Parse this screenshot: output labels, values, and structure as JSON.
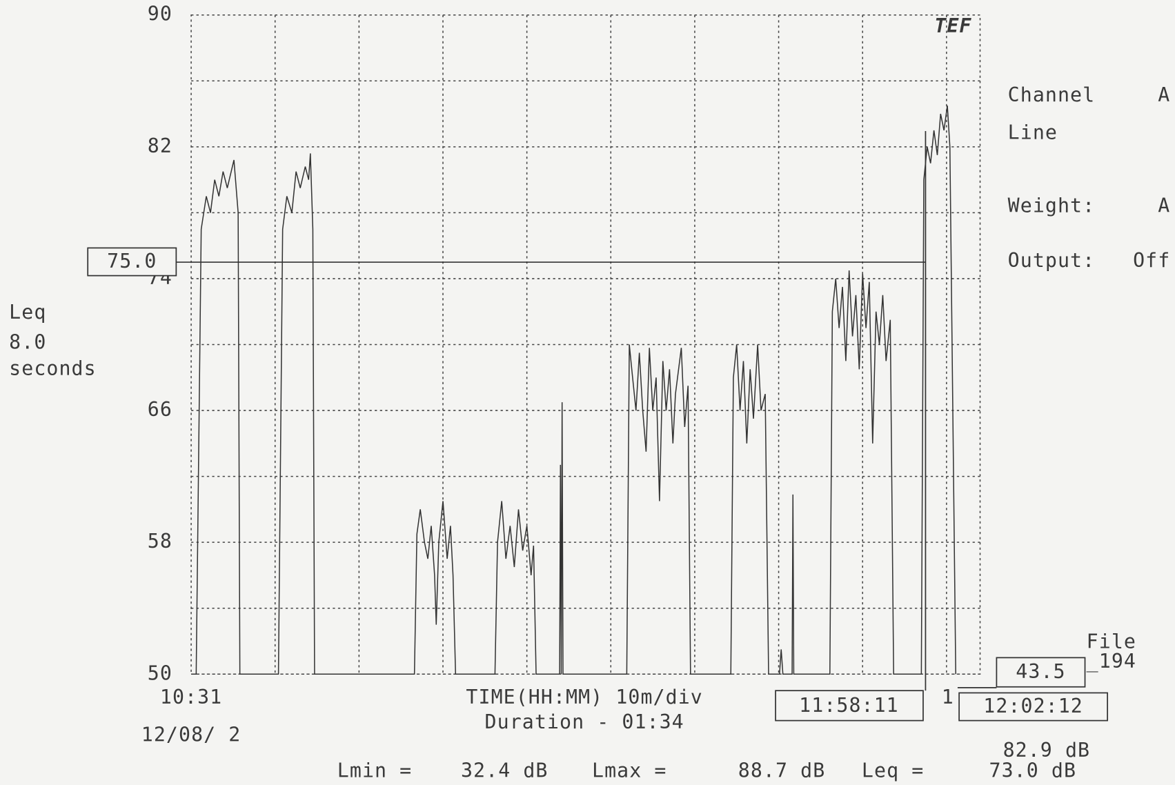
{
  "chart_data": {
    "type": "line",
    "x": [
      0,
      0.6,
      1.2,
      1.8,
      2.3,
      2.8,
      3.3,
      3.8,
      4.3,
      5.1,
      5.6,
      5.8,
      10.4,
      10.9,
      11.4,
      12,
      12.5,
      13,
      13.6,
      14,
      14.2,
      14.5,
      14.7,
      26.6,
      26.9,
      27.3,
      27.8,
      28.2,
      28.6,
      29,
      29.2,
      29.5,
      30,
      30.5,
      30.9,
      31.2,
      31.5,
      36.2,
      36.5,
      37,
      37.5,
      38,
      38.5,
      39,
      39.5,
      40,
      40.5,
      40.8,
      41.1,
      43.9,
      44,
      44.1,
      44.2,
      44.3,
      51.9,
      52.2,
      52.6,
      53,
      53.4,
      53.8,
      54.2,
      54.6,
      55,
      55.4,
      55.8,
      56.2,
      56.6,
      57,
      57.4,
      57.7,
      58.4,
      58.8,
      59.2,
      59.5,
      64.3,
      64.6,
      65,
      65.4,
      65.8,
      66.2,
      66.6,
      67,
      67.5,
      67.9,
      68.4,
      68.8,
      70.1,
      70.3,
      70.5,
      71.6,
      71.7,
      71.8,
      76.1,
      76.4,
      76.8,
      77.2,
      77.6,
      78,
      78.4,
      78.8,
      79.2,
      79.6,
      80,
      80.4,
      80.8,
      81.2,
      81.6,
      82,
      82.4,
      82.8,
      83.3,
      83.7,
      87,
      87.3,
      87.7,
      88.1,
      88.5,
      88.9,
      89.3,
      89.7,
      90.1,
      90.4,
      91.1
    ],
    "series": [
      {
        "color": "#333333",
        "values": [
          50,
          50,
          77,
          79,
          78,
          80,
          79,
          80.5,
          79.5,
          81.2,
          78,
          50,
          50,
          77,
          79,
          78,
          80.5,
          79.5,
          80.8,
          80,
          81.6,
          77,
          50,
          50,
          58.5,
          60,
          58,
          57,
          59,
          56,
          53,
          58,
          60.5,
          57,
          59,
          56,
          50,
          50,
          58,
          60.5,
          57,
          59,
          56.5,
          60,
          57.5,
          59,
          56,
          57.8,
          50,
          50,
          62.7,
          50,
          66.5,
          50,
          50,
          70,
          68,
          66,
          69.5,
          66,
          63.5,
          69.8,
          66,
          68,
          60.5,
          69,
          66,
          68.5,
          64,
          67,
          69.8,
          65,
          67.5,
          50,
          50,
          68,
          70,
          66,
          69,
          64,
          68.5,
          65.5,
          70,
          66,
          67,
          50,
          50,
          51.5,
          50,
          50,
          60.9,
          50,
          50,
          72,
          74,
          71,
          73.5,
          69,
          74.5,
          70.5,
          73,
          68.5,
          74.3,
          71,
          73.8,
          64,
          72,
          70,
          73,
          69,
          71.5,
          50,
          50,
          80,
          82,
          81,
          83,
          81.5,
          84,
          83,
          84.5,
          82,
          50
        ]
      }
    ],
    "xlim": [
      0,
      94
    ],
    "ylim": [
      50,
      90
    ],
    "yticks": [
      50,
      58,
      66,
      74,
      82,
      90
    ],
    "ygrid": [
      54,
      62,
      70,
      78,
      86
    ],
    "xticks": [
      {
        "value": 0,
        "label": "10:31"
      }
    ],
    "xgrid": [
      10,
      20,
      30,
      40,
      50,
      60,
      70,
      80,
      90
    ],
    "grid": true,
    "reference": {
      "value": 75,
      "label": "75.0"
    },
    "cursor_x": 87.5,
    "y_label": [
      "Leq",
      "8.0",
      "seconds"
    ],
    "x_label": "TIME(HH:MM) 10m/div",
    "duration": "Duration - 01:34",
    "date": "12/08/ 2",
    "cursor_time_1": "11:58:11",
    "cursor_index": "1",
    "cursor_time_2": "12:02:12",
    "cursor_level": "43.5",
    "cursor_level_2": "82.9 dB",
    "file_label": "File",
    "file_name": "_194",
    "logo": "TEF",
    "settings": [
      [
        "Channel",
        "A"
      ],
      [
        "Line",
        ""
      ],
      [
        "Weight:",
        "A"
      ],
      [
        "Output:",
        "Off"
      ]
    ],
    "stats": [
      "Lmin =",
      "32.4 dB",
      "Lmax =",
      "88.7 dB",
      "Leq =",
      "73.0 dB"
    ]
  }
}
